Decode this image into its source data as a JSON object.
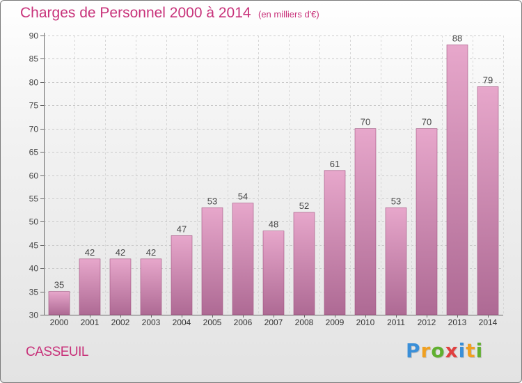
{
  "header": {
    "title": "Charges de Personnel 2000 à 2014",
    "subtitle": "(en milliers d'€)"
  },
  "commune": "CASSEUIL",
  "logo": {
    "text": "Proxiti",
    "letters": [
      {
        "char": "P",
        "color": "#3a8fd8"
      },
      {
        "char": "r",
        "color": "#f0a020"
      },
      {
        "char": "o",
        "color": "#60b030"
      },
      {
        "char": "x",
        "color": "#e04040"
      },
      {
        "char": "i",
        "color": "#3a8fd8"
      },
      {
        "char": "t",
        "color": "#f0a020"
      },
      {
        "char": "i",
        "color": "#60b030"
      }
    ]
  },
  "colors": {
    "accent": "#c8327a",
    "bar_top": "#e7a7cb",
    "bar_bottom": "#ae6a94",
    "bar_stroke": "#a0527f"
  },
  "chart_data": {
    "type": "bar",
    "categories": [
      "2000",
      "2001",
      "2002",
      "2003",
      "2004",
      "2005",
      "2006",
      "2007",
      "2008",
      "2009",
      "2010",
      "2011",
      "2012",
      "2013",
      "2014"
    ],
    "values": [
      35,
      42,
      42,
      42,
      47,
      53,
      54,
      48,
      52,
      61,
      70,
      53,
      70,
      88,
      79
    ],
    "title": "Charges de Personnel 2000 à 2014",
    "ylim": [
      30,
      90
    ],
    "yticks": [
      30,
      35,
      40,
      45,
      50,
      55,
      60,
      65,
      70,
      75,
      80,
      85,
      90
    ],
    "grid": true,
    "data_labels": true
  }
}
